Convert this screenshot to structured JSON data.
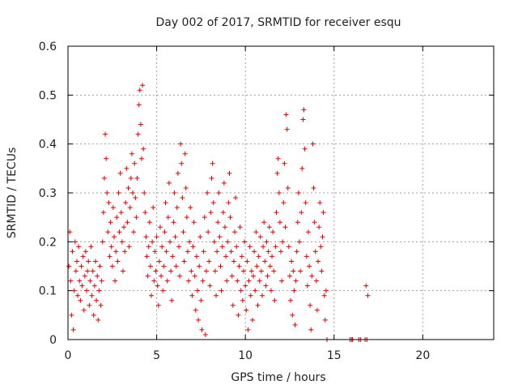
{
  "chart_data": {
    "type": "scatter",
    "title": "Day 002 of 2017, SRMTID for receiver esqu",
    "xlabel": "GPS time / hours",
    "ylabel": "SRMTID / TECUs",
    "xlim": [
      0,
      24
    ],
    "ylim": [
      0,
      0.6
    ],
    "xticks": [
      0,
      5,
      10,
      15,
      20
    ],
    "yticks": [
      0,
      0.1,
      0.2,
      0.3,
      0.4,
      0.5,
      0.6
    ],
    "xtick_labels": [
      "0",
      "5",
      "10",
      "15",
      "20"
    ],
    "ytick_labels": [
      "0",
      "0.1",
      "0.2",
      "0.3",
      "0.4",
      "0.5",
      "0.6"
    ],
    "grid": true,
    "marker": "+",
    "color": "#e00000",
    "series": [
      {
        "name": "SRMTID",
        "points": [
          [
            0.05,
            0.15
          ],
          [
            0.1,
            0.22
          ],
          [
            0.15,
            0.12
          ],
          [
            0.2,
            0.05
          ],
          [
            0.25,
            0.18
          ],
          [
            0.3,
            0.02
          ],
          [
            0.35,
            0.1
          ],
          [
            0.4,
            0.2
          ],
          [
            0.45,
            0.14
          ],
          [
            0.5,
            0.16
          ],
          [
            0.55,
            0.09
          ],
          [
            0.6,
            0.19
          ],
          [
            0.65,
            0.12
          ],
          [
            0.7,
            0.08
          ],
          [
            0.75,
            0.15
          ],
          [
            0.8,
            0.11
          ],
          [
            0.85,
            0.17
          ],
          [
            0.9,
            0.06
          ],
          [
            0.95,
            0.13
          ],
          [
            1.0,
            0.18
          ],
          [
            1.05,
            0.1
          ],
          [
            1.1,
            0.14
          ],
          [
            1.15,
            0.16
          ],
          [
            1.2,
            0.07
          ],
          [
            1.25,
            0.12
          ],
          [
            1.3,
            0.19
          ],
          [
            1.35,
            0.09
          ],
          [
            1.4,
            0.14
          ],
          [
            1.45,
            0.05
          ],
          [
            1.5,
            0.11
          ],
          [
            1.55,
            0.16
          ],
          [
            1.6,
            0.08
          ],
          [
            1.65,
            0.13
          ],
          [
            1.7,
            0.04
          ],
          [
            1.75,
            0.1
          ],
          [
            1.8,
            0.15
          ],
          [
            1.85,
            0.07
          ],
          [
            1.9,
            0.12
          ],
          [
            1.95,
            0.2
          ],
          [
            2.0,
            0.26
          ],
          [
            2.05,
            0.33
          ],
          [
            2.1,
            0.42
          ],
          [
            2.15,
            0.37
          ],
          [
            2.2,
            0.3
          ],
          [
            2.25,
            0.22
          ],
          [
            2.3,
            0.28
          ],
          [
            2.35,
            0.17
          ],
          [
            2.4,
            0.24
          ],
          [
            2.45,
            0.19
          ],
          [
            2.5,
            0.15
          ],
          [
            2.55,
            0.27
          ],
          [
            2.6,
            0.21
          ],
          [
            2.65,
            0.12
          ],
          [
            2.7,
            0.18
          ],
          [
            2.75,
            0.25
          ],
          [
            2.8,
            0.16
          ],
          [
            2.85,
            0.3
          ],
          [
            2.9,
            0.22
          ],
          [
            2.95,
            0.34
          ],
          [
            3.0,
            0.26
          ],
          [
            3.05,
            0.2
          ],
          [
            3.1,
            0.14
          ],
          [
            3.15,
            0.23
          ],
          [
            3.2,
            0.18
          ],
          [
            3.25,
            0.28
          ],
          [
            3.3,
            0.35
          ],
          [
            3.35,
            0.24
          ],
          [
            3.4,
            0.31
          ],
          [
            3.45,
            0.19
          ],
          [
            3.5,
            0.27
          ],
          [
            3.55,
            0.33
          ],
          [
            3.6,
            0.38
          ],
          [
            3.65,
            0.3
          ],
          [
            3.7,
            0.22
          ],
          [
            3.75,
            0.36
          ],
          [
            3.8,
            0.29
          ],
          [
            3.85,
            0.25
          ],
          [
            3.9,
            0.33
          ],
          [
            3.95,
            0.42
          ],
          [
            4.0,
            0.48
          ],
          [
            4.05,
            0.51
          ],
          [
            4.1,
            0.44
          ],
          [
            4.15,
            0.37
          ],
          [
            4.2,
            0.52
          ],
          [
            4.25,
            0.39
          ],
          [
            4.3,
            0.3
          ],
          [
            4.35,
            0.26
          ],
          [
            4.4,
            0.21
          ],
          [
            4.45,
            0.17
          ],
          [
            4.5,
            0.13
          ],
          [
            4.55,
            0.19
          ],
          [
            4.6,
            0.24
          ],
          [
            4.65,
            0.15
          ],
          [
            4.7,
            0.09
          ],
          [
            4.75,
            0.2
          ],
          [
            4.8,
            0.27
          ],
          [
            4.85,
            0.12
          ],
          [
            4.9,
            0.18
          ],
          [
            4.95,
            0.14
          ],
          [
            5.0,
            0.21
          ],
          [
            5.05,
            0.11
          ],
          [
            5.1,
            0.07
          ],
          [
            5.15,
            0.16
          ],
          [
            5.2,
            0.23
          ],
          [
            5.25,
            0.13
          ],
          [
            5.3,
            0.19
          ],
          [
            5.35,
            0.1
          ],
          [
            5.4,
            0.15
          ],
          [
            5.45,
            0.22
          ],
          [
            5.5,
            0.28
          ],
          [
            5.55,
            0.18
          ],
          [
            5.6,
            0.12
          ],
          [
            5.65,
            0.25
          ],
          [
            5.7,
            0.32
          ],
          [
            5.75,
            0.2
          ],
          [
            5.8,
            0.14
          ],
          [
            5.85,
            0.08
          ],
          [
            5.9,
            0.17
          ],
          [
            5.95,
            0.24
          ],
          [
            6.0,
            0.3
          ],
          [
            6.05,
            0.21
          ],
          [
            6.1,
            0.15
          ],
          [
            6.15,
            0.27
          ],
          [
            6.2,
            0.34
          ],
          [
            6.25,
            0.19
          ],
          [
            6.3,
            0.13
          ],
          [
            6.35,
            0.4
          ],
          [
            6.4,
            0.36
          ],
          [
            6.45,
            0.29
          ],
          [
            6.5,
            0.22
          ],
          [
            6.55,
            0.16
          ],
          [
            6.6,
            0.38
          ],
          [
            6.65,
            0.31
          ],
          [
            6.7,
            0.25
          ],
          [
            6.75,
            0.18
          ],
          [
            6.8,
            0.12
          ],
          [
            6.85,
            0.2
          ],
          [
            6.9,
            0.27
          ],
          [
            6.95,
            0.14
          ],
          [
            7.0,
            0.09
          ],
          [
            7.05,
            0.19
          ],
          [
            7.1,
            0.24
          ],
          [
            7.15,
            0.13
          ],
          [
            7.2,
            0.06
          ],
          [
            7.25,
            0.17
          ],
          [
            7.3,
            0.1
          ],
          [
            7.35,
            0.04
          ],
          [
            7.4,
            0.15
          ],
          [
            7.45,
            0.21
          ],
          [
            7.5,
            0.08
          ],
          [
            7.55,
            0.02
          ],
          [
            7.6,
            0.12
          ],
          [
            7.65,
            0.18
          ],
          [
            7.7,
            0.25
          ],
          [
            7.75,
            0.01
          ],
          [
            7.8,
            0.14
          ],
          [
            7.85,
            0.3
          ],
          [
            7.9,
            0.22
          ],
          [
            7.95,
            0.16
          ],
          [
            8.0,
            0.11
          ],
          [
            8.05,
            0.26
          ],
          [
            8.1,
            0.33
          ],
          [
            8.15,
            0.36
          ],
          [
            8.2,
            0.28
          ],
          [
            8.25,
            0.2
          ],
          [
            8.3,
            0.14
          ],
          [
            8.35,
            0.09
          ],
          [
            8.4,
            0.18
          ],
          [
            8.45,
            0.24
          ],
          [
            8.5,
            0.3
          ],
          [
            8.55,
            0.21
          ],
          [
            8.6,
            0.15
          ],
          [
            8.65,
            0.1
          ],
          [
            8.7,
            0.19
          ],
          [
            8.75,
            0.26
          ],
          [
            8.8,
            0.32
          ],
          [
            8.85,
            0.23
          ],
          [
            8.9,
            0.17
          ],
          [
            8.95,
            0.12
          ],
          [
            9.0,
            0.2
          ],
          [
            9.05,
            0.28
          ],
          [
            9.1,
            0.34
          ],
          [
            9.15,
            0.25
          ],
          [
            9.2,
            0.18
          ],
          [
            9.25,
            0.13
          ],
          [
            9.3,
            0.07
          ],
          [
            9.35,
            0.16
          ],
          [
            9.4,
            0.22
          ],
          [
            9.45,
            0.29
          ],
          [
            9.5,
            0.19
          ],
          [
            9.55,
            0.12
          ],
          [
            9.6,
            0.05
          ],
          [
            9.65,
            0.15
          ],
          [
            9.7,
            0.23
          ],
          [
            9.75,
            0.1
          ],
          [
            9.8,
            0.17
          ],
          [
            9.85,
            0.08
          ],
          [
            9.9,
            0.14
          ],
          [
            9.95,
            0.2
          ],
          [
            10.0,
            0.11
          ],
          [
            10.05,
            0.06
          ],
          [
            10.1,
            0.16
          ],
          [
            10.15,
            0.02
          ],
          [
            10.2,
            0.12
          ],
          [
            10.25,
            0.19
          ],
          [
            10.3,
            0.09
          ],
          [
            10.35,
            0.14
          ],
          [
            10.4,
            0.04
          ],
          [
            10.45,
            0.13
          ],
          [
            10.5,
            0.18
          ],
          [
            10.55,
            0.1
          ],
          [
            10.6,
            0.22
          ],
          [
            10.65,
            0.15
          ],
          [
            10.7,
            0.07
          ],
          [
            10.75,
            0.17
          ],
          [
            10.8,
            0.12
          ],
          [
            10.85,
            0.21
          ],
          [
            10.9,
            0.14
          ],
          [
            10.95,
            0.09
          ],
          [
            11.0,
            0.19
          ],
          [
            11.05,
            0.24
          ],
          [
            11.1,
            0.16
          ],
          [
            11.15,
            0.11
          ],
          [
            11.2,
            0.2
          ],
          [
            11.25,
            0.13
          ],
          [
            11.3,
            0.18
          ],
          [
            11.35,
            0.23
          ],
          [
            11.4,
            0.15
          ],
          [
            11.45,
            0.1
          ],
          [
            11.5,
            0.17
          ],
          [
            11.55,
            0.22
          ],
          [
            11.6,
            0.14
          ],
          [
            11.65,
            0.08
          ],
          [
            11.7,
            0.19
          ],
          [
            11.75,
            0.26
          ],
          [
            11.8,
            0.34
          ],
          [
            11.85,
            0.37
          ],
          [
            11.9,
            0.3
          ],
          [
            11.95,
            0.24
          ],
          [
            12.0,
            0.18
          ],
          [
            12.05,
            0.12
          ],
          [
            12.1,
            0.2
          ],
          [
            12.15,
            0.28
          ],
          [
            12.2,
            0.36
          ],
          [
            12.25,
            0.23
          ],
          [
            12.3,
            0.46
          ],
          [
            12.35,
            0.43
          ],
          [
            12.4,
            0.31
          ],
          [
            12.45,
            0.19
          ],
          [
            12.5,
            0.13
          ],
          [
            12.55,
            0.08
          ],
          [
            12.6,
            0.16
          ],
          [
            12.65,
            0.05
          ],
          [
            12.7,
            0.14
          ],
          [
            12.75,
            0.1
          ],
          [
            12.8,
            0.03
          ],
          [
            12.85,
            0.12
          ],
          [
            12.9,
            0.18
          ],
          [
            12.95,
            0.24
          ],
          [
            13.0,
            0.3
          ],
          [
            13.05,
            0.2
          ],
          [
            13.1,
            0.14
          ],
          [
            13.15,
            0.26
          ],
          [
            13.2,
            0.35
          ],
          [
            13.25,
            0.45
          ],
          [
            13.3,
            0.47
          ],
          [
            13.35,
            0.39
          ],
          [
            13.4,
            0.28
          ],
          [
            13.45,
            0.17
          ],
          [
            13.5,
            0.11
          ],
          [
            13.55,
            0.22
          ],
          [
            13.6,
            0.15
          ],
          [
            13.65,
            0.07
          ],
          [
            13.7,
            0.02
          ],
          [
            13.75,
            0.13
          ],
          [
            13.8,
            0.4
          ],
          [
            13.85,
            0.31
          ],
          [
            13.9,
            0.24
          ],
          [
            13.95,
            0.18
          ],
          [
            14.0,
            0.12
          ],
          [
            14.05,
            0.06
          ],
          [
            14.1,
            0.16
          ],
          [
            14.15,
            0.23
          ],
          [
            14.2,
            0.28
          ],
          [
            14.25,
            0.19
          ],
          [
            14.3,
            0.14
          ],
          [
            14.35,
            0.21
          ],
          [
            14.4,
            0.26
          ],
          [
            14.45,
            0.09
          ],
          [
            14.5,
            0.04
          ],
          [
            14.55,
            0.1
          ],
          [
            14.6,
            0.0
          ],
          [
            15.9,
            0.0
          ],
          [
            16.0,
            0.0
          ],
          [
            16.05,
            0.0
          ],
          [
            16.4,
            0.0
          ],
          [
            16.5,
            0.0
          ],
          [
            16.75,
            0.0
          ],
          [
            16.8,
            0.11
          ],
          [
            16.85,
            0.0
          ],
          [
            16.9,
            0.09
          ]
        ]
      }
    ]
  }
}
